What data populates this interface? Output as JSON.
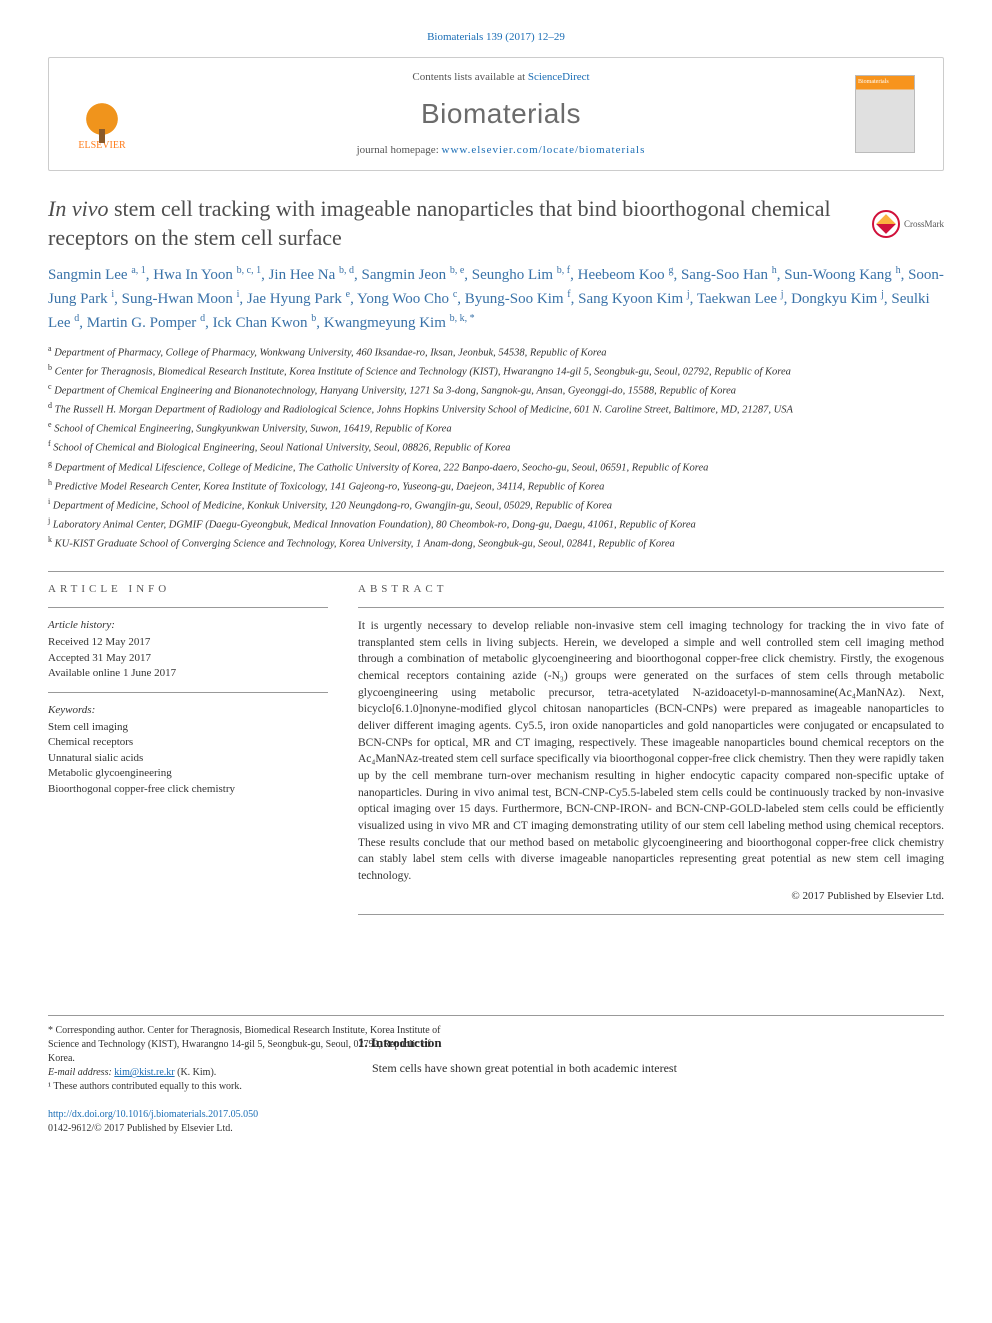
{
  "citation": "Biomaterials 139 (2017) 12–29",
  "header": {
    "publisher": "ELSEVIER",
    "contentsPrefix": "Contents lists available at ",
    "contentsLink": "ScienceDirect",
    "journal": "Biomaterials",
    "homepagePrefix": "journal homepage: ",
    "homepageUrl": "www.elsevier.com/locate/biomaterials",
    "coverLabel": "Biomaterials"
  },
  "title": {
    "italic": "In vivo",
    "rest": " stem cell tracking with imageable nanoparticles that bind bioorthogonal chemical receptors on the stem cell surface"
  },
  "crossmark": "CrossMark",
  "authorsHtml": "Sangmin Lee <sup>a, 1</sup>, Hwa In Yoon <sup>b, c, 1</sup>, Jin Hee Na <sup>b, d</sup>, Sangmin Jeon <sup>b, e</sup>, Seungho Lim <sup>b, f</sup>, Heebeom Koo <sup>g</sup>, Sang-Soo Han <sup>h</sup>, Sun-Woong Kang <sup>h</sup>, Soon-Jung Park <sup>i</sup>, Sung-Hwan Moon <sup>i</sup>, Jae Hyung Park <sup>e</sup>, Yong Woo Cho <sup>c</sup>, Byung-Soo Kim <sup>f</sup>, Sang Kyoon Kim <sup>j</sup>, Taekwan Lee <sup>j</sup>, Dongkyu Kim <sup>j</sup>, Seulki Lee <sup>d</sup>, Martin G. Pomper <sup>d</sup>, Ick Chan Kwon <sup>b</sup>, Kwangmeyung Kim <sup>b, k, *</sup>",
  "affiliations": [
    {
      "sup": "a",
      "text": "Department of Pharmacy, College of Pharmacy, Wonkwang University, 460 Iksandae-ro, Iksan, Jeonbuk, 54538, Republic of Korea"
    },
    {
      "sup": "b",
      "text": "Center for Theragnosis, Biomedical Research Institute, Korea Institute of Science and Technology (KIST), Hwarangno 14-gil 5, Seongbuk-gu, Seoul, 02792, Republic of Korea"
    },
    {
      "sup": "c",
      "text": "Department of Chemical Engineering and Bionanotechnology, Hanyang University, 1271 Sa 3-dong, Sangnok-gu, Ansan, Gyeonggi-do, 15588, Republic of Korea"
    },
    {
      "sup": "d",
      "text": "The Russell H. Morgan Department of Radiology and Radiological Science, Johns Hopkins University School of Medicine, 601 N. Caroline Street, Baltimore, MD, 21287, USA"
    },
    {
      "sup": "e",
      "text": "School of Chemical Engineering, Sungkyunkwan University, Suwon, 16419, Republic of Korea"
    },
    {
      "sup": "f",
      "text": "School of Chemical and Biological Engineering, Seoul National University, Seoul, 08826, Republic of Korea"
    },
    {
      "sup": "g",
      "text": "Department of Medical Lifescience, College of Medicine, The Catholic University of Korea, 222 Banpo-daero, Seocho-gu, Seoul, 06591, Republic of Korea"
    },
    {
      "sup": "h",
      "text": "Predictive Model Research Center, Korea Institute of Toxicology, 141 Gajeong-ro, Yuseong-gu, Daejeon, 34114, Republic of Korea"
    },
    {
      "sup": "i",
      "text": "Department of Medicine, School of Medicine, Konkuk University, 120 Neungdong-ro, Gwangjin-gu, Seoul, 05029, Republic of Korea"
    },
    {
      "sup": "j",
      "text": "Laboratory Animal Center, DGMIF (Daegu-Gyeongbuk, Medical Innovation Foundation), 80 Cheombok-ro, Dong-gu, Daegu, 41061, Republic of Korea"
    },
    {
      "sup": "k",
      "text": "KU-KIST Graduate School of Converging Science and Technology, Korea University, 1 Anam-dong, Seongbuk-gu, Seoul, 02841, Republic of Korea"
    }
  ],
  "articleInfo": {
    "heading": "ARTICLE INFO",
    "historyHeading": "Article history:",
    "received": "Received 12 May 2017",
    "accepted": "Accepted 31 May 2017",
    "available": "Available online 1 June 2017",
    "keywordsHeading": "Keywords:",
    "keywords": [
      "Stem cell imaging",
      "Chemical receptors",
      "Unnatural sialic acids",
      "Metabolic glycoengineering",
      "Bioorthogonal copper-free click chemistry"
    ]
  },
  "abstract": {
    "heading": "ABSTRACT",
    "text": "It is urgently necessary to develop reliable non-invasive stem cell imaging technology for tracking the in vivo fate of transplanted stem cells in living subjects. Herein, we developed a simple and well controlled stem cell imaging method through a combination of metabolic glycoengineering and bioorthogonal copper-free click chemistry. Firstly, the exogenous chemical receptors containing azide (-N₃) groups were generated on the surfaces of stem cells through metabolic glycoengineering using metabolic precursor, tetra-acetylated N-azidoacetyl-ᴅ-mannosamine(Ac₄ManNAz). Next, bicyclo[6.1.0]nonyne-modified glycol chitosan nanoparticles (BCN-CNPs) were prepared as imageable nanoparticles to deliver different imaging agents. Cy5.5, iron oxide nanoparticles and gold nanoparticles were conjugated or encapsulated to BCN-CNPs for optical, MR and CT imaging, respectively. These imageable nanoparticles bound chemical receptors on the Ac₄ManNAz-treated stem cell surface specifically via bioorthogonal copper-free click chemistry. Then they were rapidly taken up by the cell membrane turn-over mechanism resulting in higher endocytic capacity compared non-specific uptake of nanoparticles. During in vivo animal test, BCN-CNP-Cy5.5-labeled stem cells could be continuously tracked by non-invasive optical imaging over 15 days. Furthermore, BCN-CNP-IRON- and BCN-CNP-GOLD-labeled stem cells could be efficiently visualized using in vivo MR and CT imaging demonstrating utility of our stem cell labeling method using chemical receptors. These results conclude that our method based on metabolic glycoengineering and bioorthogonal copper-free click chemistry can stably label stem cells with diverse imageable nanoparticles representing great potential as new stem cell imaging technology.",
    "copyright": "© 2017 Published by Elsevier Ltd."
  },
  "footnotes": {
    "corresponding": "* Corresponding author. Center for Theragnosis, Biomedical Research Institute, Korea Institute of Science and Technology (KIST), Hwarangno 14-gil 5, Seongbuk-gu, Seoul, 02792, Republic of Korea.",
    "emailLabel": "E-mail address: ",
    "email": "kim@kist.re.kr",
    "emailName": " (K. Kim).",
    "equal": "¹ These authors contributed equally to this work."
  },
  "intro": {
    "heading": "1. Introduction",
    "text": "Stem cells have shown great potential in both academic interest"
  },
  "doi": {
    "url": "http://dx.doi.org/10.1016/j.biomaterials.2017.05.050",
    "issn": "0142-9612/© 2017 Published by Elsevier Ltd."
  },
  "colors": {
    "link": "#1a6db5",
    "authorBlue": "#3972a8",
    "orange": "#f7941d",
    "red": "#d0103a",
    "textGrey": "#4d4d4d"
  }
}
